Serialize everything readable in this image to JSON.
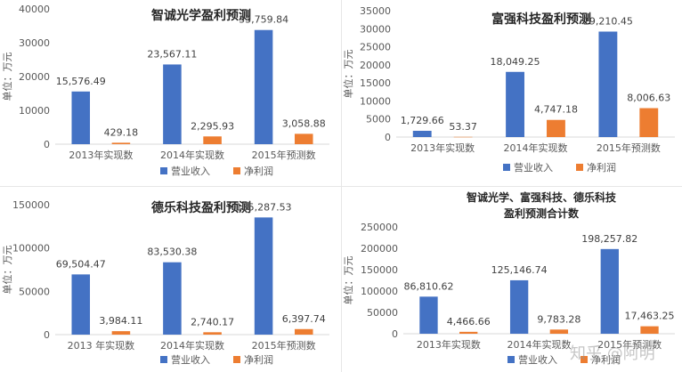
{
  "colors": {
    "revenue": "#4472C4",
    "profit": "#ED7D31",
    "axis_text": "#595959",
    "grid": "#d9d9d9"
  },
  "legend": {
    "revenue": "营业收入",
    "profit": "净利润"
  },
  "watermark": "知乎 @阿明",
  "chart_data": [
    {
      "type": "bar",
      "title_lines": [
        "智诚光学盈利预测"
      ],
      "ylabel": "单位：万元",
      "categories": [
        "2013年实现数",
        "2014年实现数",
        "2015年预测数"
      ],
      "series": [
        {
          "name": "营业收入",
          "values": [
            15576.49,
            23567.11,
            33759.84
          ],
          "labels": [
            "15,576.49",
            "23,567.11",
            "33,759.84"
          ]
        },
        {
          "name": "净利润",
          "values": [
            429.18,
            2295.93,
            3058.88
          ],
          "labels": [
            "429.18",
            "2,295.93",
            "3,058.88"
          ]
        }
      ],
      "ylim": [
        0,
        40000
      ],
      "yticks": [
        0,
        10000,
        20000,
        30000,
        40000
      ],
      "legend_position": "bottom"
    },
    {
      "type": "bar",
      "title_lines": [
        "富强科技盈利预测"
      ],
      "ylabel": "单位：万元",
      "categories": [
        "2013年实现数",
        "2014年实现数",
        "2015年预测数"
      ],
      "series": [
        {
          "name": "营业收入",
          "values": [
            1729.66,
            18049.25,
            29210.45
          ],
          "labels": [
            "1,729.66",
            "18,049.25",
            "29,210.45"
          ]
        },
        {
          "name": "净利润",
          "values": [
            53.37,
            4747.18,
            8006.63
          ],
          "labels": [
            "53.37",
            "4,747.18",
            "8,006.63"
          ]
        }
      ],
      "ylim": [
        0,
        35000
      ],
      "yticks": [
        0,
        5000,
        10000,
        15000,
        20000,
        25000,
        30000,
        35000
      ],
      "legend_position": "bottom"
    },
    {
      "type": "bar",
      "title_lines": [
        "德乐科技盈利预测"
      ],
      "ylabel": "单位：万元",
      "categories": [
        "2013 年实现数",
        "2014年实现数",
        "2015年预测数"
      ],
      "series": [
        {
          "name": "营业收入",
          "values": [
            69504.47,
            83530.38,
            135287.53
          ],
          "labels": [
            "69,504.47",
            "83,530.38",
            "135,287.53"
          ]
        },
        {
          "name": "净利润",
          "values": [
            3984.11,
            2740.17,
            6397.74
          ],
          "labels": [
            "3,984.11",
            "2,740.17",
            "6,397.74"
          ]
        }
      ],
      "ylim": [
        0,
        150000
      ],
      "yticks": [
        0,
        50000,
        100000,
        150000
      ],
      "legend_position": "bottom"
    },
    {
      "type": "bar",
      "title_lines": [
        "智诚光学、富强科技、德乐科技",
        "盈利预测合计数"
      ],
      "ylabel": "单位：万元",
      "categories": [
        "2013年实现数",
        "2014年实现数",
        "2015年预测数"
      ],
      "series": [
        {
          "name": "营业收入",
          "values": [
            86810.62,
            125146.74,
            198257.82
          ],
          "labels": [
            "86,810.62",
            "125,146.74",
            "198,257.82"
          ]
        },
        {
          "name": "净利润",
          "values": [
            4466.66,
            9783.28,
            17463.25
          ],
          "labels": [
            "4,466.66",
            "9,783.28",
            "17,463.25"
          ]
        }
      ],
      "ylim": [
        0,
        250000
      ],
      "yticks": [
        0,
        50000,
        100000,
        150000,
        200000,
        250000
      ],
      "legend_position": "bottom"
    }
  ]
}
